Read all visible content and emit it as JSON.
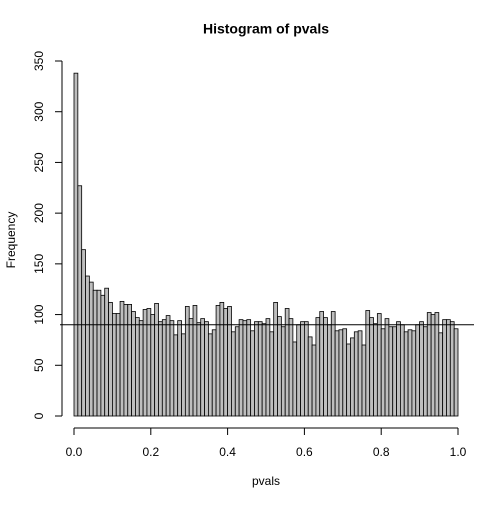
{
  "chart_data": {
    "type": "histogram",
    "title": "Histogram of pvals",
    "x_label": "pvals",
    "y_label": "Frequency",
    "bins": [
      0,
      0.01,
      0.02,
      0.03,
      0.04,
      0.05,
      0.06,
      0.07,
      0.08,
      0.09,
      0.1,
      0.11,
      0.12,
      0.13,
      0.14,
      0.15,
      0.16,
      0.17,
      0.18,
      0.19,
      0.2,
      0.21,
      0.22,
      0.23,
      0.24,
      0.25,
      0.26,
      0.27,
      0.28,
      0.29,
      0.3,
      0.31,
      0.32,
      0.33,
      0.34,
      0.35,
      0.36,
      0.37,
      0.38,
      0.39,
      0.4,
      0.41,
      0.42,
      0.43,
      0.44,
      0.45,
      0.46,
      0.47,
      0.48,
      0.49,
      0.5,
      0.51,
      0.52,
      0.53,
      0.54,
      0.55,
      0.56,
      0.57,
      0.58,
      0.59,
      0.6,
      0.61,
      0.62,
      0.63,
      0.64,
      0.65,
      0.66,
      0.67,
      0.68,
      0.69,
      0.7,
      0.71,
      0.72,
      0.73,
      0.74,
      0.75,
      0.76,
      0.77,
      0.78,
      0.79,
      0.8,
      0.81,
      0.82,
      0.83,
      0.84,
      0.85,
      0.86,
      0.87,
      0.88,
      0.89,
      0.9,
      0.91,
      0.92,
      0.93,
      0.94,
      0.95,
      0.96,
      0.97,
      0.98,
      0.99,
      1
    ],
    "values": [
      338,
      227,
      164,
      138,
      132,
      124,
      124,
      119,
      126,
      112,
      101,
      101,
      113,
      110,
      110,
      103,
      97,
      94,
      105,
      106,
      100,
      111,
      93,
      95,
      99,
      94,
      80,
      94,
      81,
      108,
      96,
      109,
      92,
      96,
      93,
      81,
      85,
      109,
      112,
      106,
      108,
      83,
      88,
      95,
      94,
      95,
      84,
      93,
      93,
      91,
      96,
      83,
      112,
      98,
      88,
      106,
      96,
      73,
      90,
      93,
      93,
      78,
      70,
      97,
      103,
      97,
      90,
      103,
      84,
      85,
      86,
      71,
      77,
      83,
      84,
      70,
      104,
      97,
      91,
      101,
      86,
      96,
      88,
      88,
      93,
      90,
      83,
      85,
      84,
      90,
      93,
      88,
      102,
      100,
      102,
      82,
      95,
      95,
      93,
      86
    ],
    "color": "#bebebe",
    "hline": 90,
    "xlim": [
      0,
      1
    ],
    "xticks": [
      {
        "value": 0,
        "label": "0.0"
      },
      0.2,
      0.4,
      0.6,
      0.8,
      {
        "value": 1,
        "label": "1.0"
      }
    ],
    "ylim": [
      0,
      350
    ],
    "yticks": [
      0,
      50,
      100,
      150,
      200,
      250,
      300,
      350
    ]
  }
}
